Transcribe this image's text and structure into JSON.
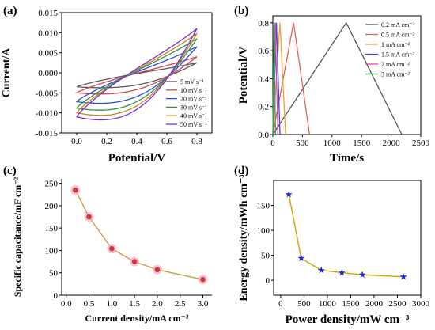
{
  "panel_labels": [
    "(a)",
    "(b)",
    "(c)",
    "(d)"
  ],
  "colors": {
    "cv": [
      "#5a5a5a",
      "#d0464b",
      "#2b4fd8",
      "#2f8f4b",
      "#c8871e",
      "#7a2fd0"
    ],
    "gcd": [
      "#555555",
      "#e0605a",
      "#f0a23c",
      "#4f3fd6",
      "#e040c8",
      "#2fa84a"
    ],
    "line_c": "#c8a040",
    "marker_c": "#cc3a3a",
    "marker_c_halo": "#f5a8c8",
    "line_d": "#d6a100",
    "marker_d": "#1f2fc8"
  },
  "chart_data": [
    {
      "panel": "(a)",
      "type": "line",
      "xlabel": "Potential/V",
      "ylabel": "Current/A",
      "xlim": [
        -0.1,
        0.9
      ],
      "ylim": [
        -0.015,
        0.015
      ],
      "xticks": [
        "0.0",
        "0.2",
        "0.4",
        "0.6",
        "0.8"
      ],
      "yticks": [
        "-0.015",
        "-0.010",
        "-0.005",
        "0.000",
        "0.005",
        "0.010",
        "0.015"
      ],
      "legend_position": "bottom-right",
      "series": [
        {
          "name": "5 mV s⁻¹",
          "curve": {
            "i_max": 0.0025,
            "i_min": -0.0035,
            "offset": 0.0014
          }
        },
        {
          "name": "10 mV s⁻¹",
          "curve": {
            "i_max": 0.004,
            "i_min": -0.005,
            "offset": 0.002
          }
        },
        {
          "name": "20 mV s⁻¹",
          "curve": {
            "i_max": 0.0065,
            "i_min": -0.0072,
            "offset": 0.003
          }
        },
        {
          "name": "30 mV s⁻¹",
          "curve": {
            "i_max": 0.0085,
            "i_min": -0.0088,
            "offset": 0.0038
          }
        },
        {
          "name": "40 mV s⁻¹",
          "curve": {
            "i_max": 0.0098,
            "i_min": -0.01,
            "offset": 0.0044
          }
        },
        {
          "name": "50 mV s⁻¹",
          "curve": {
            "i_max": 0.011,
            "i_min": -0.011,
            "offset": 0.005
          }
        }
      ]
    },
    {
      "panel": "(b)",
      "type": "line",
      "xlabel": "Time/s",
      "ylabel": "Potential/V",
      "xlim": [
        0,
        2500
      ],
      "ylim": [
        0,
        0.85
      ],
      "xticks": [
        "0",
        "500",
        "1000",
        "1500",
        "2000",
        "2500"
      ],
      "yticks": [
        "0.0",
        "0.2",
        "0.4",
        "0.6",
        "0.8"
      ],
      "legend_position": "top-right",
      "series": [
        {
          "name": "0.2 mA cm⁻²",
          "x": [
            0,
            1240,
            2180
          ],
          "y": [
            0.0,
            0.8,
            0.0
          ]
        },
        {
          "name": "0.5 mA cm⁻²",
          "x": [
            0,
            350,
            620
          ],
          "y": [
            0.0,
            0.8,
            0.0
          ]
        },
        {
          "name": "1 mA cm⁻²",
          "x": [
            0,
            120,
            215
          ],
          "y": [
            0.0,
            0.8,
            0.0
          ]
        },
        {
          "name": "1.5 mA cm⁻²",
          "x": [
            0,
            60,
            120
          ],
          "y": [
            0.0,
            0.8,
            0.0
          ]
        },
        {
          "name": "2 mA cm⁻²",
          "x": [
            0,
            40,
            85
          ],
          "y": [
            0.0,
            0.8,
            0.0
          ]
        },
        {
          "name": "3 mA cm⁻²",
          "x": [
            0,
            22,
            45
          ],
          "y": [
            0.0,
            0.8,
            0.0
          ]
        }
      ]
    },
    {
      "panel": "(c)",
      "type": "line",
      "xlabel": "Current density/mA cm⁻²",
      "ylabel": "Specific capacitance/mF cm⁻²",
      "xlim": [
        -0.1,
        3.2
      ],
      "ylim": [
        0,
        260
      ],
      "xticks": [
        "0.0",
        "0.5",
        "1.0",
        "1.5",
        "2.0",
        "2.5",
        "3.0"
      ],
      "yticks": [
        "0",
        "50",
        "100",
        "150",
        "200",
        "250"
      ],
      "x": [
        0.2,
        0.5,
        1.0,
        1.5,
        2.0,
        3.0
      ],
      "y": [
        235,
        175,
        104,
        75,
        57,
        35
      ]
    },
    {
      "panel": "(d)",
      "type": "line",
      "xlabel": "Power density/mW cm⁻³",
      "ylabel": "Energy density/mWh cm⁻³",
      "xlim": [
        -150,
        3000
      ],
      "ylim": [
        -30,
        200
      ],
      "xticks": [
        "0",
        "500",
        "1000",
        "1500",
        "2000",
        "2500",
        "3000"
      ],
      "yticks": [
        "0",
        "50",
        "100",
        "150"
      ],
      "x": [
        175,
        440,
        870,
        1310,
        1750,
        2630
      ],
      "y": [
        172,
        44,
        20,
        15,
        11,
        7
      ]
    }
  ]
}
